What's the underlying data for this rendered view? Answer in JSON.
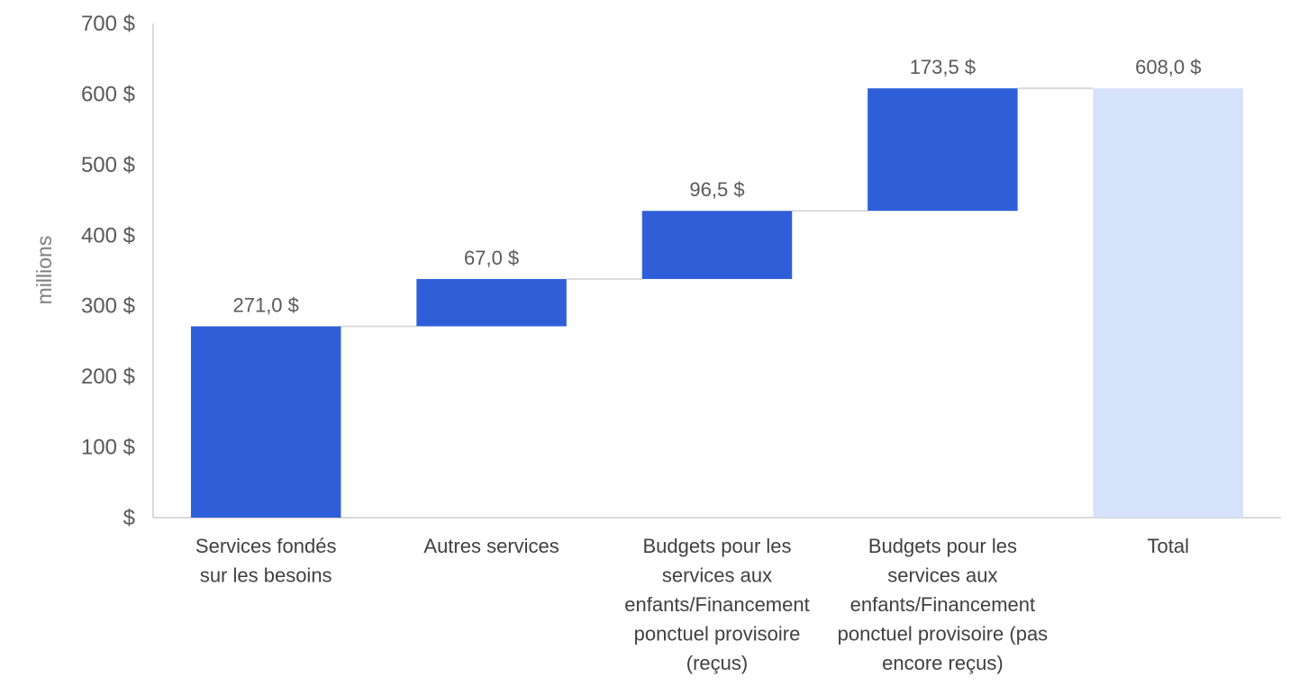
{
  "chart_data": {
    "type": "bar",
    "subtype": "waterfall",
    "categories": [
      "Services fondés sur les besoins",
      "Autres services",
      "Budgets pour les services aux enfants/Financement ponctuel provisoire (reçus)",
      "Budgets pour les services aux enfants/Financement ponctuel provisoire (pas encore reçus)",
      "Total"
    ],
    "category_lines": [
      [
        "Services fondés",
        "sur les besoins"
      ],
      [
        "Autres services"
      ],
      [
        "Budgets pour les",
        "services aux",
        "enfants/Financement",
        "ponctuel provisoire",
        "(reçus)"
      ],
      [
        "Budgets pour les",
        "services aux",
        "enfants/Financement",
        "ponctuel provisoire (pas",
        "encore reçus)"
      ],
      [
        "Total"
      ]
    ],
    "values": [
      271.0,
      67.0,
      96.5,
      173.5,
      608.0
    ],
    "is_total": [
      false,
      false,
      false,
      false,
      true
    ],
    "data_labels": [
      "271,0 $",
      "67,0 $",
      "96,5 $",
      "173,5 $",
      "608,0 $"
    ],
    "title": "",
    "xlabel": "",
    "ylabel": "millions",
    "ylim": [
      0,
      700
    ],
    "yticks": [
      0,
      100,
      200,
      300,
      400,
      500,
      600,
      700
    ],
    "ytick_labels": [
      "$",
      "100 $",
      "200 $",
      "300 $",
      "400 $",
      "500 $",
      "600 $",
      "700 $"
    ],
    "grid": false,
    "legend": "none",
    "colors": {
      "increase": "#2f5fd8",
      "total": "#d6e2fa",
      "connector": "#d9d9d9",
      "axis": "#d9d9d9"
    }
  }
}
